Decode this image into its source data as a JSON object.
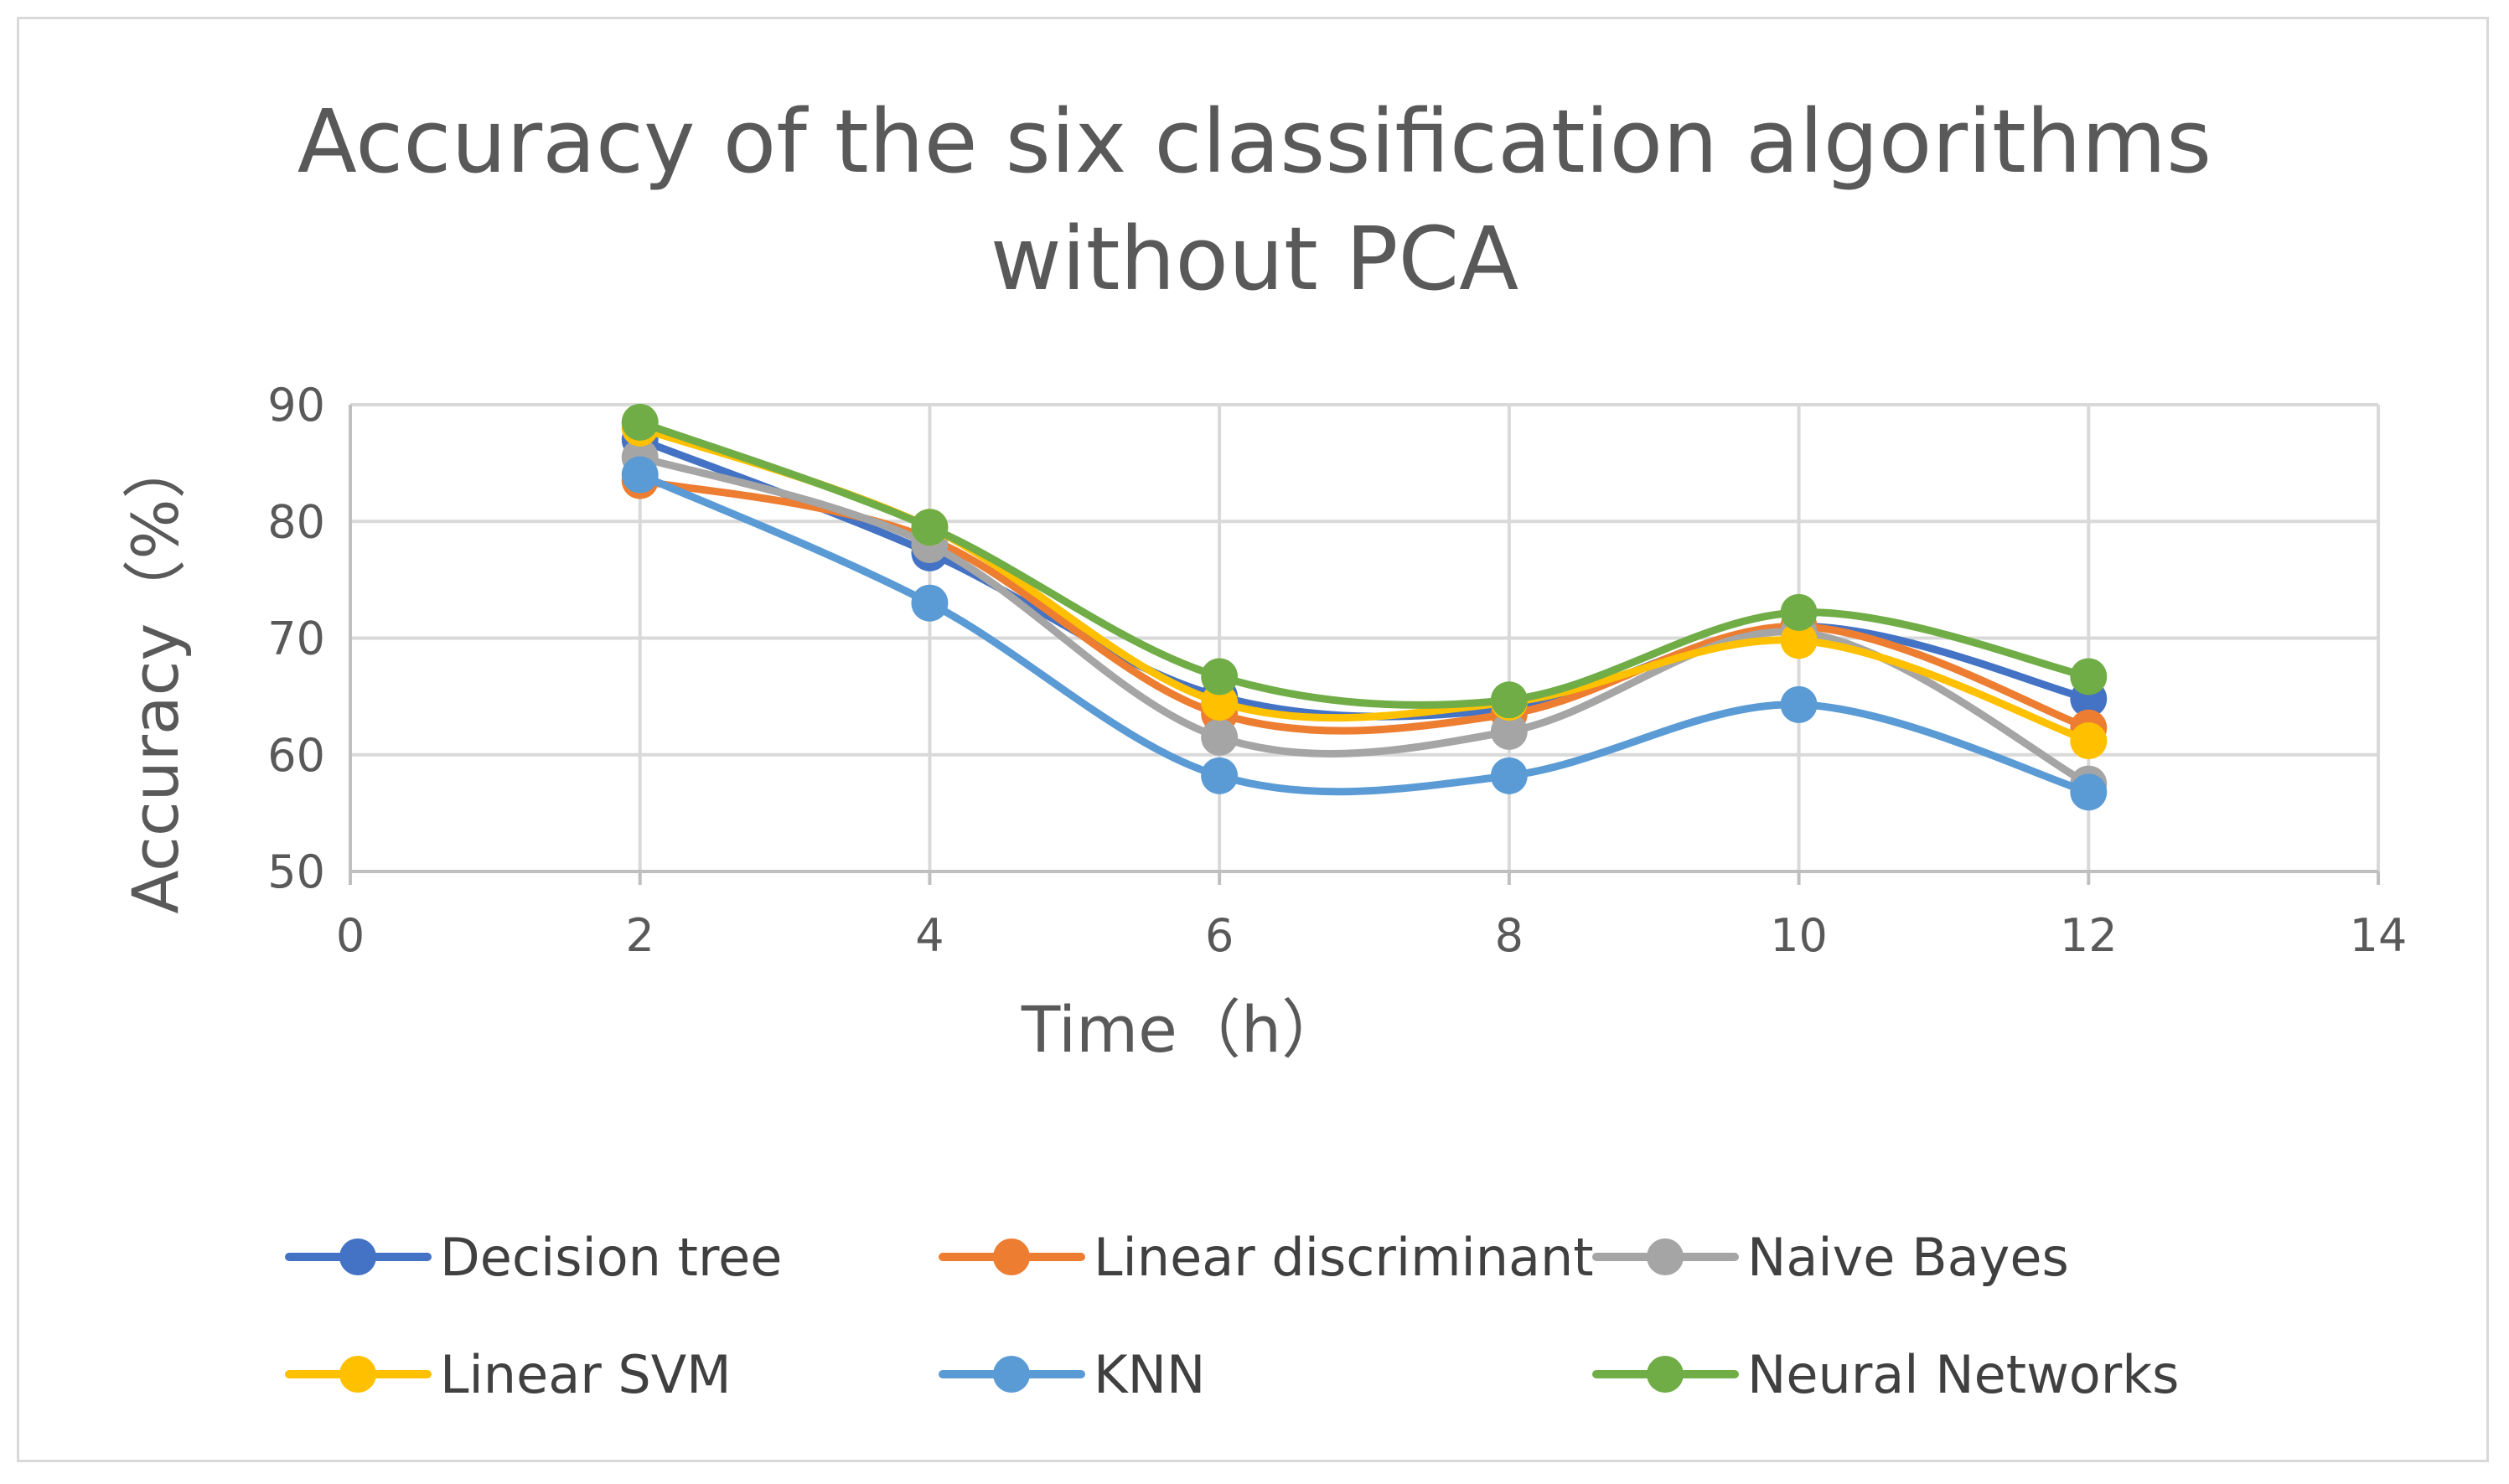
{
  "chart_data": {
    "type": "line",
    "title_lines": [
      "Accuracy of the six classification algorithms",
      "without PCA"
    ],
    "xlabel": "Time（h）",
    "ylabel": "Accuracy（%）",
    "xlim": [
      0,
      14
    ],
    "ylim": [
      50,
      90
    ],
    "xticks": [
      0,
      2,
      4,
      6,
      8,
      10,
      12,
      14
    ],
    "yticks": [
      50,
      60,
      70,
      80,
      90
    ],
    "grid": true,
    "smooth": true,
    "legend_position": "bottom",
    "x": [
      2,
      4,
      6,
      8,
      10,
      12
    ],
    "series": [
      {
        "name": "Decision tree",
        "color": "#4472C4",
        "values": [
          87.0,
          77.3,
          65.0,
          64.0,
          71.0,
          64.8
        ]
      },
      {
        "name": "Linear discriminant",
        "color": "#ED7D31",
        "values": [
          83.5,
          78.5,
          63.5,
          63.5,
          71.0,
          62.3
        ]
      },
      {
        "name": "Naive Bayes",
        "color": "#A5A5A5",
        "values": [
          85.5,
          78.0,
          61.5,
          62.0,
          70.5,
          57.5
        ]
      },
      {
        "name": " Linear SVM",
        "color": "#FFC000",
        "values": [
          88.0,
          79.5,
          64.5,
          64.5,
          69.8,
          61.2
        ]
      },
      {
        "name": "KNN",
        "color": "#5B9BD5",
        "values": [
          84.0,
          73.0,
          58.2,
          58.2,
          64.3,
          56.8
        ]
      },
      {
        "name": "Neural Networks",
        "color": "#70AD47",
        "values": [
          88.5,
          79.5,
          66.7,
          64.7,
          72.2,
          66.7
        ]
      }
    ]
  }
}
